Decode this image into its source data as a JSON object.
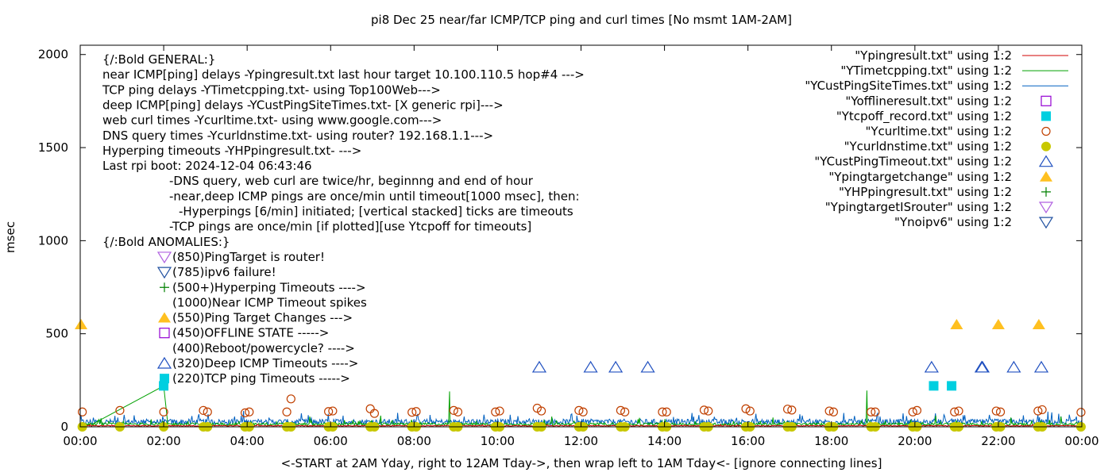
{
  "chart_data": {
    "type": "scatter",
    "title": "pi8 Dec 25  near/far ICMP/TCP ping and curl times [No msmt 1AM-2AM]",
    "xlabel": "<-START at 2AM Yday, right to 12AM Tday->, then wrap left to 1AM Tday<- [ignore connecting lines]",
    "ylabel": "msec",
    "xlim": [
      0,
      24
    ],
    "ylim": [
      0,
      2050
    ],
    "x_ticks": [
      {
        "v": 0,
        "label": "00:00"
      },
      {
        "v": 2,
        "label": "02:00"
      },
      {
        "v": 4,
        "label": "04:00"
      },
      {
        "v": 6,
        "label": "06:00"
      },
      {
        "v": 8,
        "label": "08:00"
      },
      {
        "v": 10,
        "label": "10:00"
      },
      {
        "v": 12,
        "label": "12:00"
      },
      {
        "v": 14,
        "label": "14:00"
      },
      {
        "v": 16,
        "label": "16:00"
      },
      {
        "v": 18,
        "label": "18:00"
      },
      {
        "v": 20,
        "label": "20:00"
      },
      {
        "v": 22,
        "label": "22:00"
      },
      {
        "v": 24,
        "label": "00:00"
      }
    ],
    "y_ticks": [
      {
        "v": 0,
        "label": "0"
      },
      {
        "v": 500,
        "label": "500"
      },
      {
        "v": 1000,
        "label": "1000"
      },
      {
        "v": 1500,
        "label": "1500"
      },
      {
        "v": 2000,
        "label": "2000"
      }
    ],
    "grid": false,
    "legend_position": "top-right",
    "annotations": [
      "{/:Bold GENERAL:}",
      "near ICMP[ping] delays -Ypingresult.txt last hour target 10.100.110.5 hop#4 --->",
      "TCP ping delays -YTimetcpping.txt- using Top100Web--->",
      "deep ICMP[ping] delays -YCustPingSiteTimes.txt- [X generic rpi]--->",
      "web curl times -Ycurltime.txt- using www.google.com--->",
      "DNS query times -Ycurldnstime.txt- using router? 192.168.1.1--->",
      "Hyperping timeouts -YHPpingresult.txt- --->",
      "Last rpi boot: 2024-12-04 06:43:46",
      "-DNS query, web curl are twice/hr, beginnng and end of hour",
      "-near,deep ICMP pings are once/min until timeout[1000 msec], then:",
      "-Hyperpings [6/min] initiated; [vertical stacked] ticks are timeouts",
      "-TCP pings are once/min [if plotted][use Ytcpoff for timeouts]",
      "{/:Bold ANOMALIES:}",
      "(850)PingTarget is router!",
      "(785)ipv6 failure!",
      "(500+)Hyperping Timeouts ---->",
      "(1000)Near ICMP Timeout spikes",
      "(550)Ping Target Changes --->",
      "(450)OFFLINE STATE ----->",
      "(400)Reboot/powercycle? ---->",
      "(320)Deep ICMP Timeouts ---->",
      "(220)TCP ping Timeouts ----->"
    ],
    "series": [
      {
        "name": "\"Ypingresult.txt\" using 1:2",
        "style": "line",
        "color": "#d00000",
        "level": 5,
        "noise": 4,
        "spikes": []
      },
      {
        "name": "\"YTimetcpping.txt\" using 1:2",
        "style": "line",
        "color": "#00a000",
        "level": 12,
        "noise": 14,
        "spikes": [
          [
            0.5,
            45
          ],
          [
            1.7,
            40
          ],
          [
            5.5,
            55
          ],
          [
            7.2,
            60
          ],
          [
            8.85,
            190
          ],
          [
            11.3,
            55
          ],
          [
            13.4,
            48
          ],
          [
            16.6,
            50
          ],
          [
            18.85,
            195
          ],
          [
            20.5,
            60
          ],
          [
            22.3,
            50
          ],
          [
            23.5,
            55
          ]
        ]
      },
      {
        "name": "\"YCustPingSiteTimes.txt\" using 1:2",
        "style": "line",
        "color": "#0060c0",
        "level": 22,
        "noise": 30,
        "spikes": [
          [
            0.9,
            50
          ],
          [
            3.7,
            55
          ],
          [
            6.3,
            60
          ],
          [
            9.2,
            55
          ],
          [
            11.9,
            60
          ],
          [
            14.7,
            55
          ],
          [
            17.3,
            60
          ],
          [
            19.8,
            58
          ],
          [
            22.6,
            62
          ],
          [
            23.7,
            65
          ]
        ]
      },
      {
        "name": "\"Yofflineresult.txt\" using 1:2",
        "style": "marker",
        "marker": "square-open",
        "color": "#9400d3",
        "points": []
      },
      {
        "name": "\"Ytcpoff_record.txt\" using 1:2",
        "style": "marker",
        "marker": "square-filled",
        "color": "#00cfe0",
        "points": [
          [
            2.0,
            220
          ],
          [
            20.45,
            220
          ],
          [
            20.88,
            220
          ]
        ]
      },
      {
        "name": "\"Ycurltime.txt\" using 1:2",
        "style": "marker",
        "marker": "circle-open",
        "color": "#c04000",
        "points": [
          [
            0.05,
            80
          ],
          [
            0.95,
            88
          ],
          [
            2.0,
            80
          ],
          [
            2.95,
            88
          ],
          [
            3.05,
            80
          ],
          [
            3.95,
            75
          ],
          [
            4.05,
            80
          ],
          [
            4.95,
            80
          ],
          [
            5.05,
            150
          ],
          [
            5.95,
            82
          ],
          [
            6.05,
            85
          ],
          [
            6.95,
            97
          ],
          [
            7.05,
            72
          ],
          [
            7.95,
            78
          ],
          [
            8.05,
            82
          ],
          [
            8.95,
            88
          ],
          [
            9.05,
            80
          ],
          [
            9.95,
            80
          ],
          [
            10.05,
            85
          ],
          [
            10.95,
            100
          ],
          [
            11.05,
            85
          ],
          [
            11.95,
            88
          ],
          [
            12.05,
            80
          ],
          [
            12.95,
            88
          ],
          [
            13.05,
            80
          ],
          [
            13.95,
            80
          ],
          [
            14.05,
            80
          ],
          [
            14.95,
            90
          ],
          [
            15.05,
            85
          ],
          [
            15.95,
            97
          ],
          [
            16.05,
            85
          ],
          [
            16.95,
            95
          ],
          [
            17.05,
            90
          ],
          [
            17.95,
            85
          ],
          [
            18.05,
            80
          ],
          [
            18.95,
            80
          ],
          [
            19.05,
            80
          ],
          [
            19.95,
            80
          ],
          [
            20.05,
            88
          ],
          [
            20.95,
            80
          ],
          [
            21.05,
            85
          ],
          [
            21.95,
            85
          ],
          [
            22.05,
            80
          ],
          [
            22.95,
            85
          ],
          [
            23.05,
            92
          ],
          [
            23.98,
            78
          ]
        ]
      },
      {
        "name": "\"Ycurldnstime.txt\" using 1:2",
        "style": "marker",
        "marker": "circle-filled",
        "color": "#c8c800",
        "points": [
          [
            0.05,
            0
          ],
          [
            0.95,
            0
          ],
          [
            2.0,
            0
          ],
          [
            2.95,
            0
          ],
          [
            3.05,
            0
          ],
          [
            3.95,
            0
          ],
          [
            4.05,
            0
          ],
          [
            4.95,
            0
          ],
          [
            5.05,
            0
          ],
          [
            5.95,
            0
          ],
          [
            6.05,
            0
          ],
          [
            6.95,
            0
          ],
          [
            7.05,
            0
          ],
          [
            7.95,
            0
          ],
          [
            8.05,
            0
          ],
          [
            8.95,
            0
          ],
          [
            9.05,
            0
          ],
          [
            9.95,
            0
          ],
          [
            10.05,
            0
          ],
          [
            10.95,
            0
          ],
          [
            11.05,
            0
          ],
          [
            11.95,
            0
          ],
          [
            12.05,
            0
          ],
          [
            12.95,
            0
          ],
          [
            13.05,
            0
          ],
          [
            13.95,
            0
          ],
          [
            14.05,
            0
          ],
          [
            14.95,
            0
          ],
          [
            15.05,
            0
          ],
          [
            15.95,
            0
          ],
          [
            16.05,
            0
          ],
          [
            16.95,
            0
          ],
          [
            17.05,
            0
          ],
          [
            17.95,
            0
          ],
          [
            18.05,
            0
          ],
          [
            18.95,
            0
          ],
          [
            19.05,
            0
          ],
          [
            19.95,
            0
          ],
          [
            20.05,
            0
          ],
          [
            20.95,
            0
          ],
          [
            21.05,
            0
          ],
          [
            21.95,
            0
          ],
          [
            22.05,
            0
          ],
          [
            22.95,
            0
          ],
          [
            23.05,
            0
          ],
          [
            23.98,
            0
          ]
        ]
      },
      {
        "name": "\"YCustPingTimeout.txt\" using 1:2",
        "style": "marker",
        "marker": "triangle-up-open",
        "color": "#2050c0",
        "points": [
          [
            11.0,
            320
          ],
          [
            12.23,
            320
          ],
          [
            12.83,
            320
          ],
          [
            13.6,
            320
          ],
          [
            20.4,
            320
          ],
          [
            21.6,
            320
          ],
          [
            21.62,
            320
          ],
          [
            22.37,
            320
          ],
          [
            23.03,
            320
          ]
        ]
      },
      {
        "name": "\"Ypingtargetchange\" using 1:2",
        "style": "marker",
        "marker": "triangle-up-filled",
        "color": "#ffc020",
        "points": [
          [
            0.02,
            550
          ],
          [
            21.0,
            550
          ],
          [
            22.0,
            550
          ],
          [
            22.97,
            550
          ]
        ]
      },
      {
        "name": "\"YHPpingresult.txt\" using 1:2",
        "style": "marker",
        "marker": "plus",
        "color": "#008000",
        "points": []
      },
      {
        "name": "\"YpingtargetISrouter\" using 1:2",
        "style": "marker",
        "marker": "triangle-down-open",
        "color": "#b060e0",
        "points": []
      },
      {
        "name": "\"Ynoipv6\" using 1:2",
        "style": "marker",
        "marker": "triangle-down-open",
        "color": "#2050a0",
        "points": []
      }
    ],
    "annotation_markers": [
      {
        "line": 13,
        "marker": "triangle-down-open",
        "color": "#b060e0"
      },
      {
        "line": 14,
        "marker": "triangle-down-open",
        "color": "#2050a0"
      },
      {
        "line": 15,
        "marker": "plus",
        "color": "#008000"
      },
      {
        "line": 17,
        "marker": "triangle-up-filled",
        "color": "#ffc020"
      },
      {
        "line": 18,
        "marker": "square-open",
        "color": "#9400d3"
      },
      {
        "line": 20,
        "marker": "triangle-up-open",
        "color": "#2050c0"
      },
      {
        "line": 21,
        "marker": "square-filled",
        "color": "#00cfe0"
      }
    ]
  }
}
